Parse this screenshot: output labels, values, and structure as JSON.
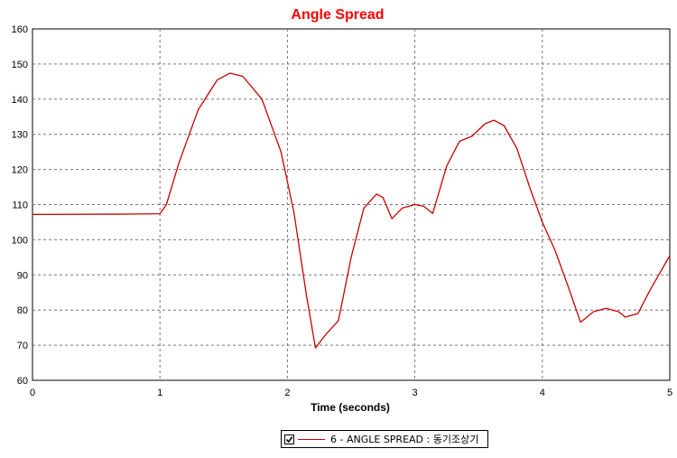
{
  "chart_data": {
    "type": "line",
    "title": "Angle Spread",
    "xlabel": "Time (seconds)",
    "ylabel": "",
    "xlim": [
      0,
      5
    ],
    "ylim": [
      60,
      160
    ],
    "x_ticks": [
      "0",
      "1",
      "2",
      "3",
      "4",
      "5"
    ],
    "y_ticks": [
      "60",
      "70",
      "80",
      "90",
      "100",
      "110",
      "120",
      "130",
      "140",
      "150",
      "160"
    ],
    "grid": true,
    "legend_position": "bottom-center",
    "series": [
      {
        "name": "6 - ANGLE SPREAD : 동기조상기",
        "color": "#cc0000",
        "x": [
          0,
          0.75,
          1.0,
          1.05,
          1.15,
          1.3,
          1.45,
          1.55,
          1.65,
          1.8,
          1.95,
          2.05,
          2.15,
          2.22,
          2.3,
          2.4,
          2.5,
          2.6,
          2.7,
          2.75,
          2.82,
          2.9,
          3.0,
          3.07,
          3.14,
          3.25,
          3.35,
          3.45,
          3.55,
          3.62,
          3.7,
          3.8,
          3.9,
          4.0,
          4.1,
          4.2,
          4.3,
          4.4,
          4.5,
          4.6,
          4.65,
          4.75,
          4.85,
          5.0
        ],
        "y": [
          107.2,
          107.3,
          107.4,
          110,
          122,
          137,
          145.5,
          147.4,
          146.5,
          140,
          125,
          108,
          84,
          69.2,
          73,
          77,
          95,
          109,
          113,
          112,
          106,
          109,
          110,
          109.5,
          107.5,
          121,
          128,
          129.5,
          133,
          134,
          132.5,
          126,
          115,
          105,
          97,
          87,
          76.5,
          79.5,
          80.5,
          79.5,
          78,
          79,
          86,
          95.5
        ]
      }
    ]
  },
  "legend": {
    "checked": true,
    "label": "6 - ANGLE SPREAD : 동기조상기"
  }
}
